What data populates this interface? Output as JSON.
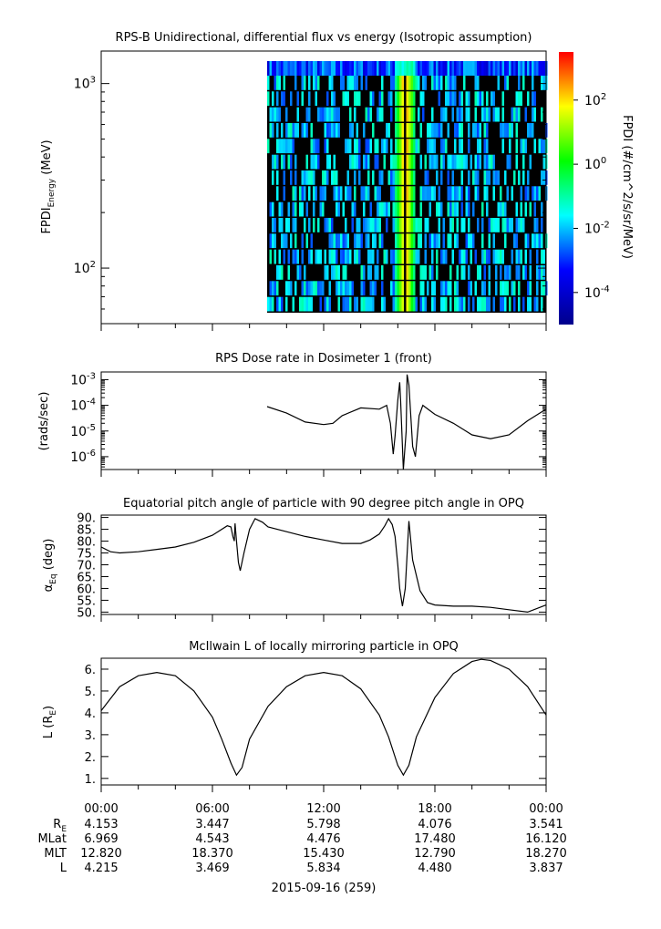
{
  "date_label": "2015-09-16 (259)",
  "time_ticks": [
    "00:00",
    "06:00",
    "12:00",
    "18:00",
    "00:00"
  ],
  "ephemeris": [
    {
      "label": "R",
      "sub": "E",
      "values": [
        "4.153",
        "3.447",
        "5.798",
        "4.076",
        "3.541"
      ]
    },
    {
      "label": "MLat",
      "sub": "",
      "values": [
        "6.969",
        "4.543",
        "4.476",
        "17.480",
        "16.120"
      ]
    },
    {
      "label": "MLT",
      "sub": "",
      "values": [
        "12.820",
        "18.370",
        "15.430",
        "12.790",
        "18.270"
      ]
    },
    {
      "label": "L",
      "sub": "",
      "values": [
        "4.215",
        "3.469",
        "5.834",
        "4.480",
        "3.837"
      ]
    }
  ],
  "chart_data": [
    {
      "type": "heatmap",
      "title": "RPS-B  Unidirectional, differential flux vs energy (Isotropic assumption)",
      "ylabel_main": "FPDI",
      "ylabel_sub": "Energy",
      "ylabel_unit": "(MeV)",
      "yscale": "log",
      "ylim": [
        50,
        1500
      ],
      "y_ticks": [
        {
          "value": 100,
          "base": "10",
          "exp": "2"
        },
        {
          "value": 1000,
          "base": "10",
          "exp": "3"
        }
      ],
      "xlim_hours": [
        0,
        24
      ],
      "data_start_hour": 8.95,
      "data_end_hour": 24,
      "energy_channels": 16,
      "peak_band_hours": [
        15.8,
        16.9
      ],
      "colorbar": {
        "label": "FPDI (#/cm^2/s/sr/MeV)",
        "range_log10": [
          -5,
          3.5
        ],
        "colors": [
          "#00008b",
          "#0000ff",
          "#00ffff",
          "#00ff00",
          "#ffff00",
          "#ff0000"
        ],
        "ticks": [
          {
            "value": 2,
            "base": "10",
            "exp": "2"
          },
          {
            "value": 0,
            "base": "10",
            "exp": "0"
          },
          {
            "value": -2,
            "base": "10",
            "exp": "-2"
          },
          {
            "value": -4,
            "base": "10",
            "exp": "-4"
          }
        ]
      }
    },
    {
      "type": "line",
      "title": "RPS  Dose rate in Dosimeter 1 (front)",
      "ylabel": "(rads/sec)",
      "yscale": "log",
      "ylim_log10": [
        -6.5,
        -2.7
      ],
      "y_ticks": [
        {
          "value": -3,
          "base": "10",
          "exp": "-3"
        },
        {
          "value": -4,
          "base": "10",
          "exp": "-4"
        },
        {
          "value": -5,
          "base": "10",
          "exp": "-5"
        },
        {
          "value": -6,
          "base": "10",
          "exp": "-6"
        }
      ],
      "x_hours": [
        8.95,
        10,
        11,
        12,
        12.5,
        13,
        14,
        15,
        15.4,
        15.6,
        15.75,
        15.85,
        16.0,
        16.1,
        16.15,
        16.3,
        16.45,
        16.5,
        16.6,
        16.8,
        16.95,
        17.15,
        17.35,
        18,
        19,
        20,
        21,
        22,
        23,
        24
      ],
      "y_log10": [
        -4.05,
        -4.3,
        -4.65,
        -4.75,
        -4.7,
        -4.4,
        -4.1,
        -4.15,
        -4.0,
        -4.7,
        -5.9,
        -5.2,
        -3.8,
        -3.1,
        -3.8,
        -6.5,
        -5.0,
        -2.8,
        -3.2,
        -5.6,
        -6.0,
        -4.4,
        -4.0,
        -4.35,
        -4.7,
        -5.15,
        -5.3,
        -5.15,
        -4.6,
        -4.15
      ]
    },
    {
      "type": "line",
      "title": "Equatorial pitch angle of particle with 90 degree pitch angle in OPQ",
      "ylabel_main": "α",
      "ylabel_sub": "Eq",
      "ylabel_unit": "(deg)",
      "ylim": [
        49,
        91
      ],
      "y_ticks": [
        90,
        85,
        80,
        75,
        70,
        65,
        60,
        55,
        50
      ],
      "y_tick_labels": [
        "90.",
        "85.",
        "80.",
        "75.",
        "70.",
        "65.",
        "60.",
        "55.",
        "50."
      ],
      "x_hours": [
        0,
        0.5,
        1,
        2,
        3,
        4,
        5,
        6,
        6.8,
        7.0,
        7.1,
        7.18,
        7.22,
        7.3,
        7.4,
        7.5,
        7.7,
        8.0,
        8.3,
        8.7,
        9,
        10,
        11,
        12,
        13,
        14,
        14.5,
        15,
        15.3,
        15.5,
        15.7,
        15.85,
        16.0,
        16.1,
        16.25,
        16.4,
        16.6,
        16.8,
        17.2,
        17.6,
        18,
        19,
        20,
        21,
        22,
        23,
        24
      ],
      "y": [
        77.5,
        75.5,
        75.0,
        75.5,
        76.5,
        77.5,
        79.5,
        82.5,
        86.5,
        86.0,
        82.0,
        80.0,
        87.5,
        80.0,
        71.0,
        67.5,
        75.0,
        85.0,
        89.5,
        88.0,
        86.0,
        84.0,
        82.0,
        80.5,
        79.0,
        79.0,
        80.5,
        83.0,
        86.5,
        89.5,
        87.0,
        82.0,
        70.0,
        60.0,
        52.5,
        60.0,
        88.5,
        72.0,
        59.0,
        54.0,
        53.0,
        52.5,
        52.5,
        52.0,
        51.0,
        50.0,
        53.0
      ]
    },
    {
      "type": "line",
      "title": "McIlwain L of locally mirroring particle in OPQ",
      "ylabel_main": "L (R",
      "ylabel_sub": "E",
      "ylabel_unit": ")",
      "ylim": [
        0.7,
        6.5
      ],
      "y_ticks": [
        6,
        5,
        4,
        3,
        2,
        1
      ],
      "y_tick_labels": [
        "6.",
        "5.",
        "4.",
        "3.",
        "2.",
        "1."
      ],
      "x_hours": [
        0,
        1,
        2,
        3,
        4,
        5,
        6,
        6.5,
        7.0,
        7.3,
        7.6,
        8,
        9,
        10,
        11,
        12,
        13,
        14,
        15,
        15.5,
        16.0,
        16.3,
        16.6,
        17,
        18,
        19,
        20,
        20.5,
        21,
        22,
        23,
        24
      ],
      "y": [
        4.1,
        5.2,
        5.7,
        5.85,
        5.7,
        5.0,
        3.8,
        2.8,
        1.7,
        1.15,
        1.5,
        2.8,
        4.3,
        5.2,
        5.7,
        5.85,
        5.7,
        5.1,
        3.9,
        2.9,
        1.6,
        1.15,
        1.6,
        2.9,
        4.7,
        5.8,
        6.35,
        6.45,
        6.4,
        6.0,
        5.2,
        3.9
      ]
    }
  ]
}
